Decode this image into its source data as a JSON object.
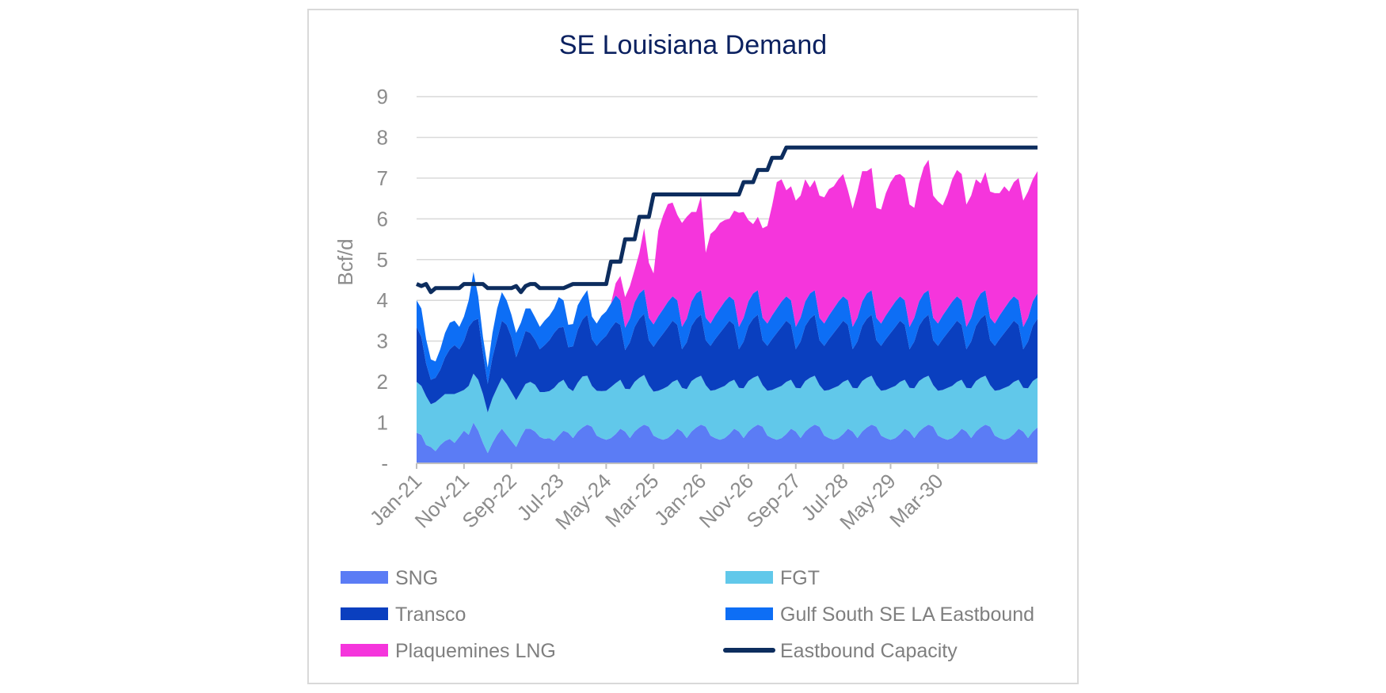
{
  "chart_data": {
    "type": "area",
    "title": "SE Louisiana Demand",
    "ylabel": "Bcf/d",
    "xlabel": "",
    "ylim": [
      0,
      9
    ],
    "y_ticks": [
      {
        "value": 0,
        "label": "-"
      },
      {
        "value": 1,
        "label": "1"
      },
      {
        "value": 2,
        "label": "2"
      },
      {
        "value": 3,
        "label": "3"
      },
      {
        "value": 4,
        "label": "4"
      },
      {
        "value": 5,
        "label": "5"
      },
      {
        "value": 6,
        "label": "6"
      },
      {
        "value": 7,
        "label": "7"
      },
      {
        "value": 8,
        "label": "8"
      },
      {
        "value": 9,
        "label": "9"
      }
    ],
    "x_start": "Jan-21",
    "x_end": "Dec-31",
    "x_ticks": [
      "Jan-21",
      "Nov-21",
      "Sep-22",
      "Jul-23",
      "May-24",
      "Mar-25",
      "Jan-26",
      "Nov-26",
      "Sep-27",
      "Jul-28",
      "May-29",
      "Mar-30"
    ],
    "grid": "horizontal",
    "legend_position": "bottom",
    "series": [
      {
        "name": "SNG",
        "kind": "stacked-area",
        "color": "#5b7cf5",
        "values": [
          0.75,
          0.7,
          0.45,
          0.4,
          0.3,
          0.45,
          0.55,
          0.6,
          0.5,
          0.65,
          0.8,
          0.7,
          1.0,
          0.8,
          0.5,
          0.25,
          0.5,
          0.7,
          0.85,
          0.7,
          0.55,
          0.4,
          0.65,
          0.85,
          0.85,
          0.78,
          0.65,
          0.6,
          0.62,
          0.55,
          0.68,
          0.8,
          0.75,
          0.62,
          0.78,
          0.88,
          0.95,
          0.9,
          0.68,
          0.62,
          0.58,
          0.62,
          0.72,
          0.85,
          0.78,
          0.62,
          0.78,
          0.88,
          0.95,
          0.9,
          0.68,
          0.62,
          0.58,
          0.62,
          0.72,
          0.85,
          0.78,
          0.62,
          0.78,
          0.88,
          0.95,
          0.9,
          0.68,
          0.62,
          0.58,
          0.62,
          0.72,
          0.85,
          0.78,
          0.62,
          0.78,
          0.88,
          0.95,
          0.9,
          0.68,
          0.62,
          0.58,
          0.62,
          0.72,
          0.85,
          0.78,
          0.62,
          0.78,
          0.88,
          0.95,
          0.9,
          0.68,
          0.62,
          0.58,
          0.62,
          0.72,
          0.85,
          0.78,
          0.62,
          0.78,
          0.88,
          0.95,
          0.9,
          0.68,
          0.62,
          0.58,
          0.62,
          0.72,
          0.85,
          0.78,
          0.62,
          0.78,
          0.88,
          0.95,
          0.9,
          0.68,
          0.62,
          0.58,
          0.62,
          0.72,
          0.85,
          0.78,
          0.62,
          0.78,
          0.88,
          0.95,
          0.9,
          0.68,
          0.62,
          0.58,
          0.62,
          0.72,
          0.85,
          0.78,
          0.62,
          0.78,
          0.88
        ]
      },
      {
        "name": "FGT",
        "kind": "stacked-area",
        "color": "#61c8ea",
        "values": [
          1.25,
          1.2,
          1.2,
          1.05,
          1.2,
          1.15,
          1.15,
          1.1,
          1.2,
          1.1,
          1.0,
          1.2,
          1.2,
          1.25,
          1.2,
          1.0,
          1.1,
          1.15,
          1.25,
          1.25,
          1.2,
          1.15,
          1.1,
          1.1,
          1.15,
          1.15,
          1.1,
          1.15,
          1.15,
          1.3,
          1.3,
          1.25,
          1.1,
          1.15,
          1.2,
          1.25,
          1.2,
          1.0,
          1.1,
          1.15,
          1.2,
          1.25,
          1.25,
          1.2,
          1.05,
          1.2,
          1.22,
          1.22,
          1.22,
          1.02,
          1.08,
          1.16,
          1.25,
          1.27,
          1.28,
          1.2,
          1.07,
          1.2,
          1.24,
          1.22,
          1.2,
          1.02,
          1.1,
          1.18,
          1.27,
          1.28,
          1.28,
          1.2,
          1.07,
          1.22,
          1.24,
          1.22,
          1.2,
          1.02,
          1.1,
          1.18,
          1.27,
          1.28,
          1.28,
          1.2,
          1.07,
          1.22,
          1.24,
          1.22,
          1.2,
          1.02,
          1.1,
          1.18,
          1.27,
          1.28,
          1.28,
          1.2,
          1.07,
          1.22,
          1.24,
          1.22,
          1.2,
          1.02,
          1.1,
          1.18,
          1.27,
          1.28,
          1.28,
          1.2,
          1.07,
          1.22,
          1.24,
          1.22,
          1.2,
          1.02,
          1.1,
          1.18,
          1.27,
          1.28,
          1.28,
          1.2,
          1.07,
          1.22,
          1.24,
          1.22,
          1.2,
          1.02,
          1.1,
          1.18,
          1.27,
          1.28,
          1.28,
          1.2,
          1.07,
          1.22,
          1.24,
          1.22
        ]
      },
      {
        "name": "Transco",
        "kind": "stacked-area",
        "color": "#0a3fbf",
        "values": [
          1.35,
          1.2,
          0.8,
          0.6,
          0.6,
          0.7,
          0.9,
          1.1,
          1.2,
          1.05,
          1.2,
          1.45,
          1.3,
          1.5,
          1.0,
          0.7,
          1.0,
          1.2,
          1.4,
          1.45,
          1.35,
          1.05,
          1.15,
          1.3,
          1.2,
          1.1,
          1.05,
          1.15,
          1.25,
          1.35,
          1.35,
          1.3,
          1.0,
          1.1,
          1.3,
          1.4,
          1.5,
          1.15,
          1.1,
          1.25,
          1.35,
          1.45,
          1.5,
          1.35,
          0.95,
          1.15,
          1.35,
          1.45,
          1.5,
          1.1,
          1.1,
          1.25,
          1.35,
          1.45,
          1.5,
          1.35,
          0.95,
          1.15,
          1.35,
          1.45,
          1.5,
          1.1,
          1.1,
          1.25,
          1.35,
          1.45,
          1.5,
          1.35,
          0.95,
          1.15,
          1.35,
          1.45,
          1.5,
          1.1,
          1.1,
          1.25,
          1.35,
          1.45,
          1.5,
          1.35,
          0.95,
          1.15,
          1.35,
          1.45,
          1.5,
          1.1,
          1.1,
          1.25,
          1.35,
          1.45,
          1.5,
          1.35,
          0.95,
          1.15,
          1.35,
          1.45,
          1.5,
          1.1,
          1.1,
          1.25,
          1.35,
          1.45,
          1.5,
          1.35,
          0.95,
          1.15,
          1.35,
          1.45,
          1.5,
          1.1,
          1.1,
          1.25,
          1.35,
          1.45,
          1.5,
          1.35,
          0.95,
          1.15,
          1.35,
          1.45,
          1.5,
          1.1,
          1.1,
          1.25,
          1.35,
          1.45,
          1.5,
          1.35,
          0.95,
          1.15,
          1.35,
          1.45
        ]
      },
      {
        "name": "Gulf South SE LA Eastbound",
        "kind": "stacked-area",
        "color": "#0d6ef5",
        "values": [
          0.65,
          0.7,
          0.6,
          0.5,
          0.4,
          0.5,
          0.6,
          0.65,
          0.6,
          0.55,
          0.6,
          0.65,
          1.2,
          0.55,
          0.4,
          0.4,
          0.6,
          0.75,
          0.7,
          0.6,
          0.55,
          0.6,
          0.55,
          0.55,
          0.6,
          0.55,
          0.55,
          0.6,
          0.6,
          0.6,
          0.75,
          0.65,
          0.55,
          0.55,
          0.6,
          0.55,
          0.6,
          0.55,
          0.55,
          0.6,
          0.6,
          0.6,
          0.65,
          0.6,
          0.55,
          0.58,
          0.6,
          0.62,
          0.6,
          0.55,
          0.55,
          0.58,
          0.6,
          0.62,
          0.6,
          0.6,
          0.55,
          0.58,
          0.6,
          0.62,
          0.6,
          0.55,
          0.55,
          0.58,
          0.6,
          0.62,
          0.6,
          0.6,
          0.55,
          0.58,
          0.6,
          0.62,
          0.6,
          0.55,
          0.55,
          0.58,
          0.6,
          0.62,
          0.6,
          0.6,
          0.55,
          0.58,
          0.6,
          0.62,
          0.6,
          0.55,
          0.55,
          0.58,
          0.6,
          0.62,
          0.6,
          0.6,
          0.55,
          0.58,
          0.6,
          0.62,
          0.6,
          0.55,
          0.55,
          0.58,
          0.6,
          0.62,
          0.6,
          0.6,
          0.55,
          0.58,
          0.6,
          0.62,
          0.6,
          0.55,
          0.55,
          0.58,
          0.6,
          0.62,
          0.6,
          0.6,
          0.55,
          0.58,
          0.6,
          0.62,
          0.6,
          0.55,
          0.55,
          0.58,
          0.6,
          0.62,
          0.6,
          0.6,
          0.55,
          0.58,
          0.6,
          0.62
        ]
      },
      {
        "name": "Plaquemines LNG",
        "kind": "stacked-area",
        "color": "#f535dc",
        "values": [
          0,
          0,
          0,
          0,
          0,
          0,
          0,
          0,
          0,
          0,
          0,
          0,
          0,
          0,
          0,
          0,
          0,
          0,
          0,
          0,
          0,
          0,
          0,
          0,
          0,
          0,
          0,
          0,
          0,
          0,
          0,
          0,
          0,
          0,
          0,
          0,
          0,
          0,
          0,
          0,
          0,
          0,
          0.3,
          0.6,
          0.75,
          0.8,
          0.8,
          1.0,
          1.5,
          1.35,
          1.25,
          2.1,
          2.3,
          2.4,
          2.3,
          2.1,
          2.55,
          2.5,
          2.2,
          2.0,
          2.3,
          1.6,
          2.2,
          2.1,
          2.1,
          2.0,
          1.9,
          2.2,
          2.8,
          2.6,
          2.0,
          1.7,
          1.8,
          2.2,
          2.4,
          2.7,
          3.1,
          3.0,
          2.6,
          2.8,
          3.1,
          3.0,
          3.0,
          2.6,
          2.7,
          3.0,
          3.1,
          3.1,
          3.0,
          3.0,
          3.0,
          2.7,
          2.9,
          3.1,
          3.2,
          3.0,
          3.0,
          2.7,
          2.8,
          3.0,
          3.1,
          3.1,
          3.0,
          3.0,
          3.0,
          2.7,
          2.9,
          3.1,
          3.2,
          3.0,
          3.0,
          2.7,
          2.8,
          3.0,
          3.1,
          3.1,
          3.0,
          3.0,
          3.0,
          2.7,
          2.9,
          3.1,
          3.2,
          3.0,
          3.0,
          2.7,
          2.8,
          3.0,
          3.1,
          3.1,
          3.0,
          3.0
        ]
      },
      {
        "name": "Eastbound Capacity",
        "kind": "line",
        "color": "#0d2d5e",
        "values": [
          4.4,
          4.35,
          4.4,
          4.2,
          4.3,
          4.3,
          4.3,
          4.3,
          4.3,
          4.3,
          4.4,
          4.4,
          4.4,
          4.4,
          4.4,
          4.3,
          4.3,
          4.3,
          4.3,
          4.3,
          4.3,
          4.35,
          4.2,
          4.35,
          4.4,
          4.4,
          4.3,
          4.3,
          4.3,
          4.3,
          4.3,
          4.3,
          4.35,
          4.4,
          4.4,
          4.4,
          4.4,
          4.4,
          4.4,
          4.4,
          4.4,
          4.95,
          4.95,
          4.95,
          5.5,
          5.5,
          5.5,
          6.05,
          6.05,
          6.05,
          6.6,
          6.6,
          6.6,
          6.6,
          6.6,
          6.6,
          6.6,
          6.6,
          6.6,
          6.6,
          6.6,
          6.6,
          6.6,
          6.6,
          6.6,
          6.6,
          6.6,
          6.6,
          6.6,
          6.9,
          6.9,
          6.9,
          7.2,
          7.2,
          7.2,
          7.5,
          7.5,
          7.5,
          7.75,
          7.75,
          7.75,
          7.75,
          7.75,
          7.75,
          7.75,
          7.75,
          7.75,
          7.75,
          7.75,
          7.75,
          7.75,
          7.75,
          7.75,
          7.75,
          7.75,
          7.75,
          7.75,
          7.75,
          7.75,
          7.75,
          7.75,
          7.75,
          7.75,
          7.75,
          7.75,
          7.75,
          7.75,
          7.75,
          7.75,
          7.75,
          7.75,
          7.75,
          7.75,
          7.75,
          7.75,
          7.75,
          7.75,
          7.75,
          7.75,
          7.75,
          7.75,
          7.75,
          7.75,
          7.75,
          7.75,
          7.75,
          7.75,
          7.75,
          7.75,
          7.75,
          7.75,
          7.75
        ]
      }
    ]
  }
}
